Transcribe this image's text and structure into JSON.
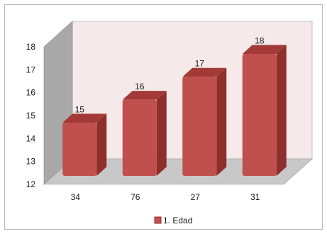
{
  "chart_data": {
    "type": "bar",
    "categories": [
      "34",
      "76",
      "27",
      "31"
    ],
    "series": [
      {
        "name": "1. Edad",
        "values": [
          15,
          16,
          17,
          18
        ]
      }
    ],
    "ylim": [
      12,
      18
    ],
    "yticks": [
      "12",
      "13",
      "14",
      "15",
      "16",
      "17",
      "18"
    ],
    "grid": false,
    "legend": "bottom",
    "three_d": true,
    "colors": {
      "bar_front": "#c0504d",
      "bar_side": "#8e2f2c",
      "bar_top": "#a33a37",
      "back_wall": "#f6e9e9",
      "side_wall": "#a8a8a8",
      "floor": "#c8c8c8"
    }
  }
}
